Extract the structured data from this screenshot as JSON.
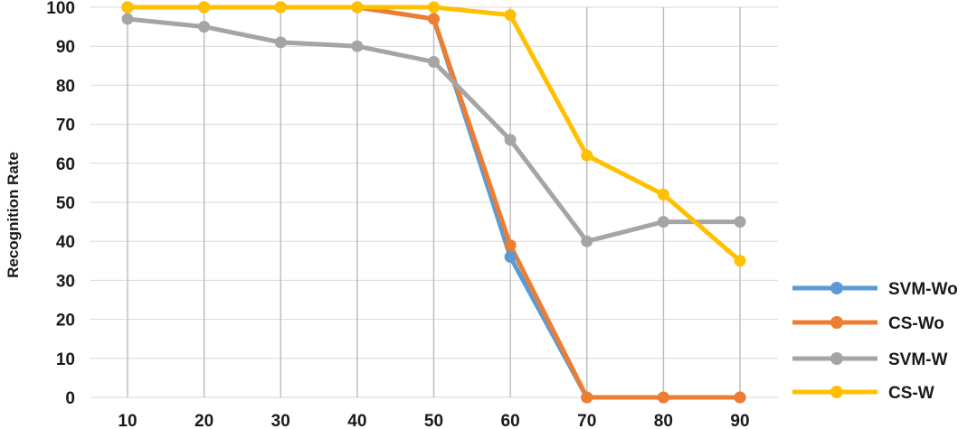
{
  "chart_data": {
    "type": "line",
    "title": "",
    "xlabel": "",
    "ylabel": "Recognition Rate",
    "x": [
      10,
      20,
      30,
      40,
      50,
      60,
      70,
      80,
      90
    ],
    "xlim": [
      10,
      90
    ],
    "ylim": [
      0,
      100
    ],
    "yticks": [
      0,
      10,
      20,
      30,
      40,
      50,
      60,
      70,
      80,
      90,
      100
    ],
    "grid": true,
    "legend_position": "bottom-right",
    "series": [
      {
        "name": "SVM-Wo",
        "color": "#5b9bd5",
        "values": [
          100,
          100,
          100,
          100,
          97,
          36,
          0,
          0,
          0
        ]
      },
      {
        "name": "CS-Wo",
        "color": "#ed7d31",
        "values": [
          100,
          100,
          100,
          100,
          97,
          39,
          0,
          0,
          0
        ]
      },
      {
        "name": "SVM-W",
        "color": "#a5a5a5",
        "values": [
          97,
          95,
          91,
          90,
          86,
          66,
          40,
          45,
          45
        ]
      },
      {
        "name": "CS-W",
        "color": "#ffc000",
        "values": [
          100,
          100,
          100,
          100,
          100,
          98,
          62,
          52,
          35
        ]
      }
    ]
  }
}
